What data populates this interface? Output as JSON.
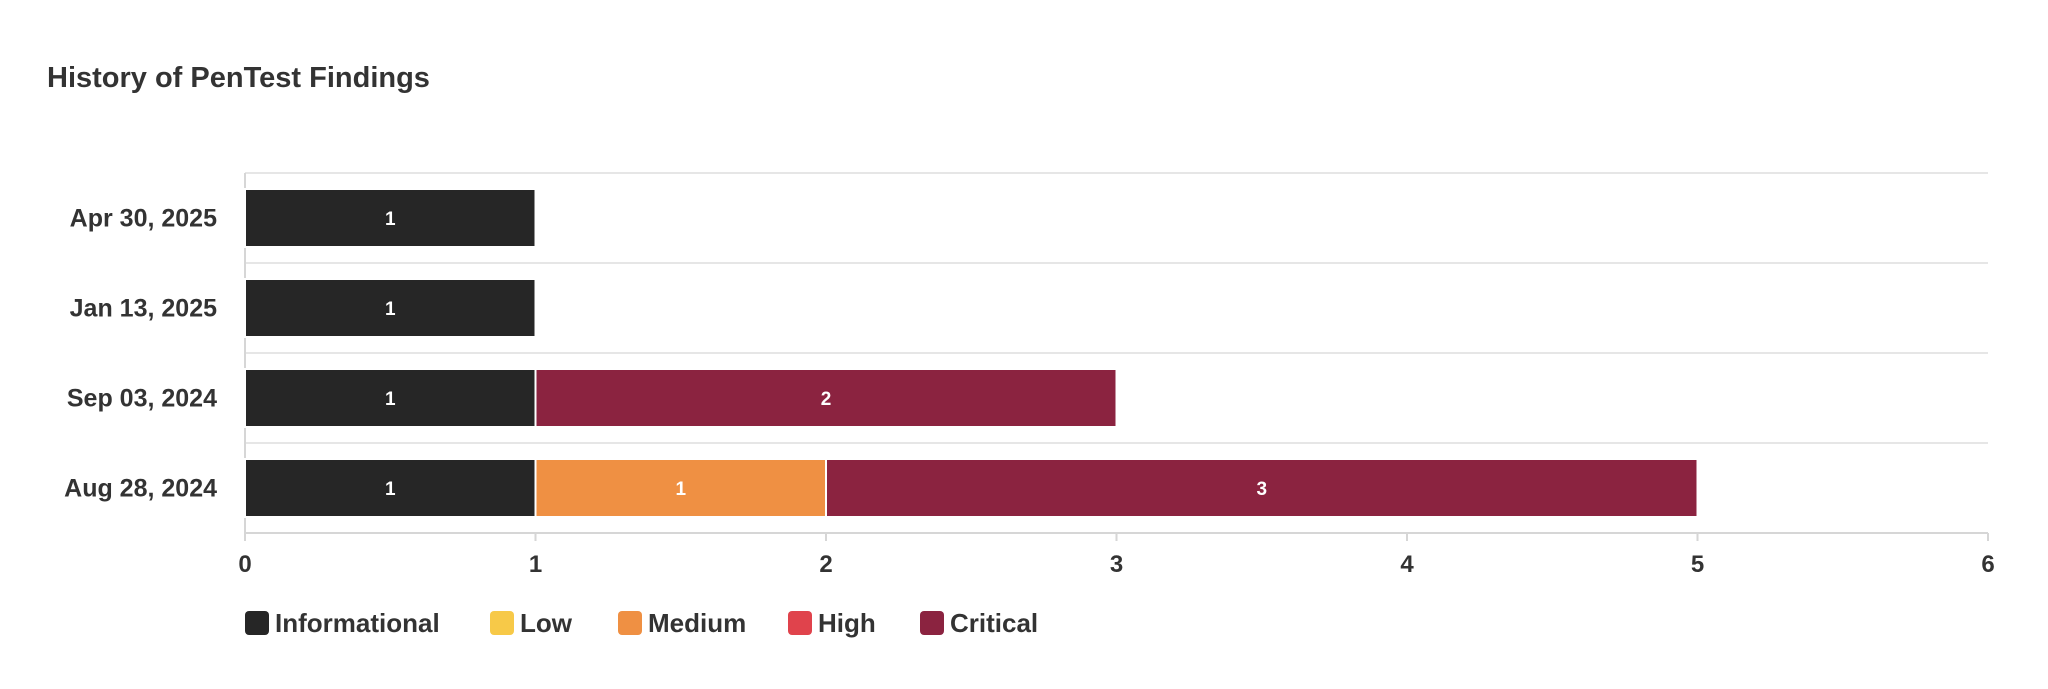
{
  "chart_data": {
    "type": "bar",
    "orientation": "horizontal",
    "stacked": true,
    "title": "History of PenTest Findings",
    "categories": [
      "Apr 30, 2025",
      "Jan 13, 2025",
      "Sep 03, 2024",
      "Aug 28, 2024"
    ],
    "series": [
      {
        "name": "Informational",
        "color": "#262626",
        "values": [
          1,
          1,
          1,
          1
        ]
      },
      {
        "name": "Low",
        "color": "#f7c948",
        "values": [
          0,
          0,
          0,
          0
        ]
      },
      {
        "name": "Medium",
        "color": "#ef9043",
        "values": [
          0,
          0,
          0,
          1
        ]
      },
      {
        "name": "High",
        "color": "#e0434c",
        "values": [
          0,
          0,
          0,
          0
        ]
      },
      {
        "name": "Critical",
        "color": "#8b2340",
        "values": [
          0,
          0,
          2,
          3
        ]
      }
    ],
    "xlim": [
      0,
      6
    ],
    "xticks": [
      0,
      1,
      2,
      3,
      4,
      5,
      6
    ],
    "xlabel": "",
    "ylabel": "",
    "grid": "category-separators",
    "legend_position": "bottom-left"
  }
}
